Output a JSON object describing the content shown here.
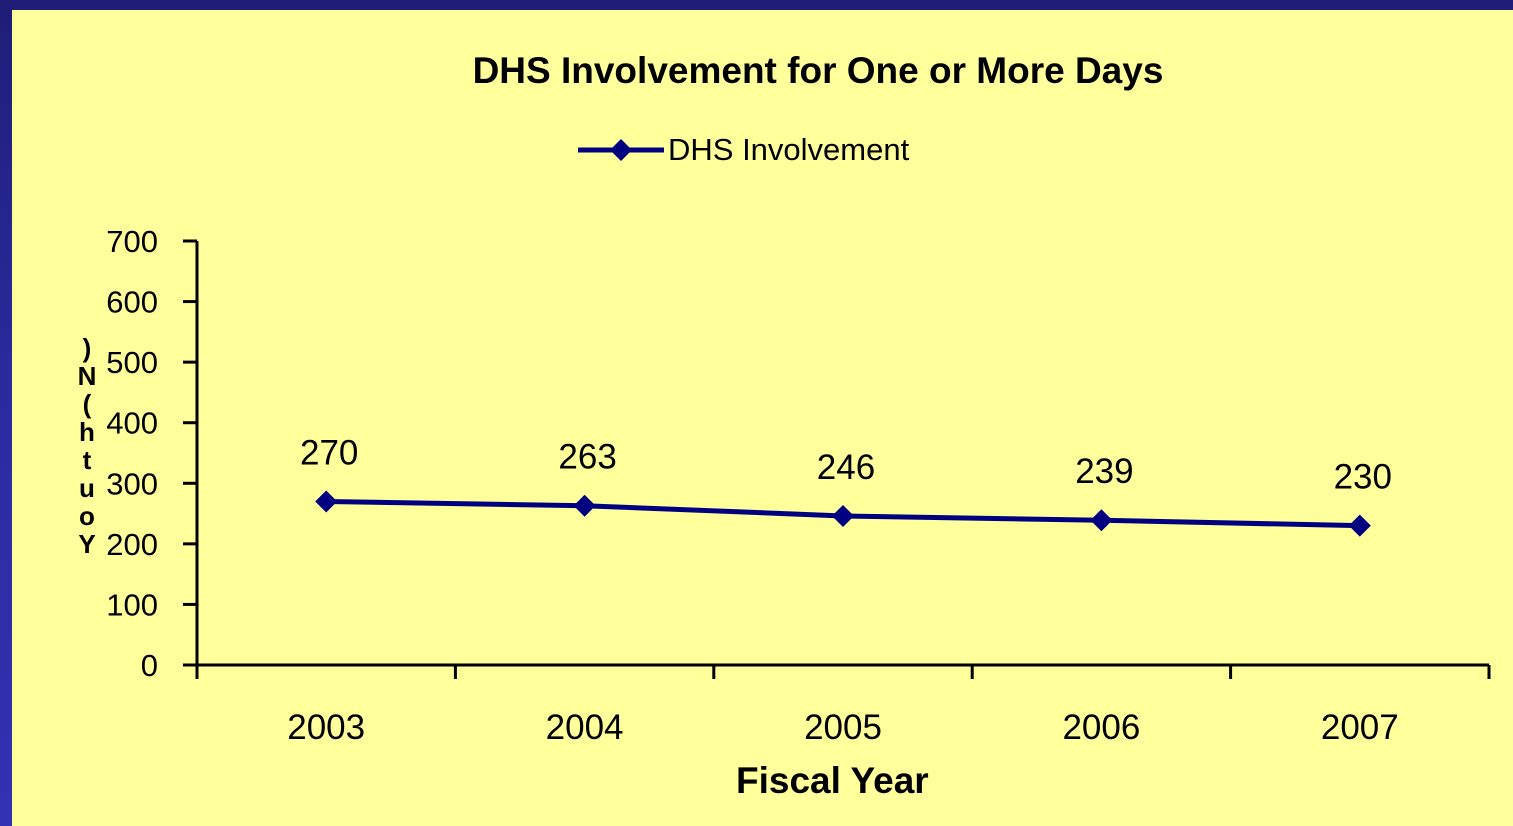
{
  "chart_data": {
    "type": "line",
    "title": "DHS Involvement for One or More Days",
    "xlabel": "Fiscal Year",
    "ylabel": "Youth (N)",
    "categories": [
      "2003",
      "2004",
      "2005",
      "2006",
      "2007"
    ],
    "series": [
      {
        "name": "DHS Involvement",
        "values": [
          270,
          263,
          246,
          239,
          230
        ],
        "color": "#000080"
      }
    ],
    "data_labels": [
      "270",
      "263",
      "246",
      "239",
      "230"
    ],
    "yticks": [
      "0",
      "100",
      "200",
      "300",
      "400",
      "500",
      "600",
      "700"
    ],
    "ylim": [
      0,
      700
    ],
    "grid": false,
    "legend": "top",
    "marker": "diamond"
  },
  "colors": {
    "background": "#2a2a9e",
    "plot_area": "#ffff9c",
    "line": "#000080"
  }
}
